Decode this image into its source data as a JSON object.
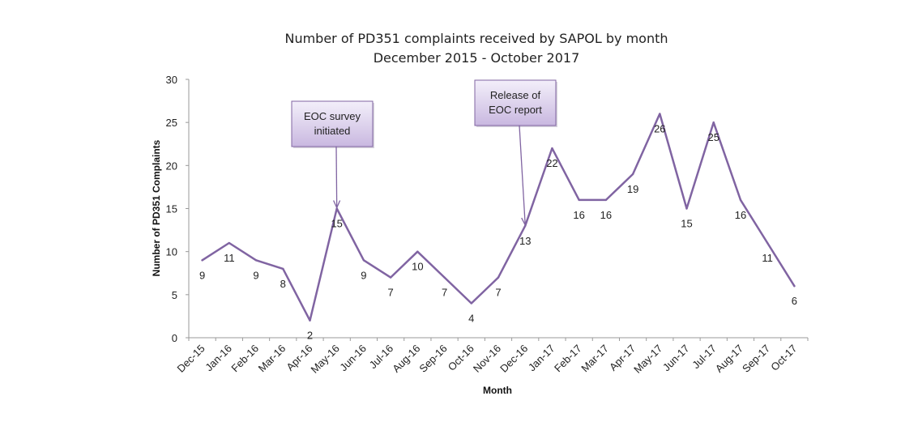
{
  "chart_data": {
    "type": "line",
    "title": "Number of PD351 complaints received by SAPOL by month",
    "subtitle": "December 2015 - October 2017",
    "xlabel": "Month",
    "ylabel": "Number of PD351 Complaints",
    "ylim": [
      0,
      30
    ],
    "yticks": [
      0,
      5,
      10,
      15,
      20,
      25,
      30
    ],
    "grid": false,
    "legend": "none",
    "line_color": "#8064A2",
    "categories": [
      "Dec-15",
      "Jan-16",
      "Feb-16",
      "Mar-16",
      "Apr-16",
      "May-16",
      "Jun-16",
      "Jul-16",
      "Aug-16",
      "Sep-16",
      "Oct-16",
      "Nov-16",
      "Dec-16",
      "Jan-17",
      "Feb-17",
      "Mar-17",
      "Apr-17",
      "May-17",
      "Jun-17",
      "Jul-17",
      "Aug-17",
      "Sep-17",
      "Oct-17"
    ],
    "values": [
      9,
      11,
      9,
      8,
      2,
      15,
      9,
      7,
      10,
      7,
      4,
      7,
      13,
      22,
      16,
      16,
      19,
      26,
      15,
      25,
      16,
      11,
      6
    ],
    "annotations": [
      {
        "category": "May-16",
        "lines": [
          "EOC survey",
          "initiated"
        ]
      },
      {
        "category": "Dec-16",
        "lines": [
          "Release of",
          "EOC report"
        ]
      }
    ]
  }
}
